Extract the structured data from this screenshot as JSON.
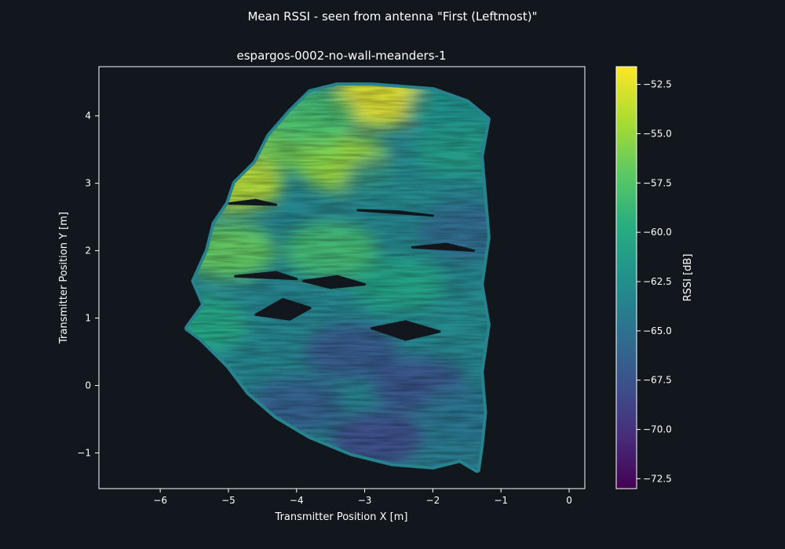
{
  "chart_data": {
    "type": "scatter",
    "suptitle": "Mean RSSI - seen from antenna \"First (Leftmost)\"",
    "title": "espargos-0002-no-wall-meanders-1",
    "xlabel": "Transmitter Position X [m]",
    "ylabel": "Transmitter Position Y [m]",
    "xlim": [
      -6.9,
      0.23
    ],
    "ylim": [
      -1.53,
      4.73
    ],
    "xticks": [
      -6,
      -5,
      -4,
      -3,
      -2,
      -1,
      0
    ],
    "yticks": [
      -1,
      0,
      1,
      2,
      3,
      4
    ],
    "grid": false,
    "colorbar": {
      "label": "RSSI [dB]",
      "range": [
        -73.0,
        -51.6
      ],
      "ticks": [
        -52.5,
        -55.0,
        -57.5,
        -60.0,
        -62.5,
        -65.0,
        -67.5,
        -70.0,
        -72.5
      ],
      "colormap": "viridis"
    },
    "region_outline": [
      [
        -2.9,
        4.45
      ],
      [
        -2.0,
        4.38
      ],
      [
        -1.5,
        4.2
      ],
      [
        -1.2,
        3.95
      ],
      [
        -1.3,
        3.4
      ],
      [
        -1.25,
        2.8
      ],
      [
        -1.2,
        2.2
      ],
      [
        -1.3,
        1.5
      ],
      [
        -1.2,
        0.9
      ],
      [
        -1.3,
        0.2
      ],
      [
        -1.25,
        -0.4
      ],
      [
        -1.3,
        -0.9
      ],
      [
        -1.35,
        -1.25
      ],
      [
        -1.6,
        -1.1
      ],
      [
        -2.0,
        -1.2
      ],
      [
        -2.6,
        -1.15
      ],
      [
        -3.2,
        -1.0
      ],
      [
        -3.8,
        -0.75
      ],
      [
        -4.3,
        -0.45
      ],
      [
        -4.7,
        -0.1
      ],
      [
        -5.0,
        0.3
      ],
      [
        -5.4,
        0.7
      ],
      [
        -5.6,
        0.85
      ],
      [
        -5.35,
        1.2
      ],
      [
        -5.5,
        1.55
      ],
      [
        -5.3,
        2.0
      ],
      [
        -5.2,
        2.4
      ],
      [
        -5.0,
        2.7
      ],
      [
        -4.9,
        3.0
      ],
      [
        -4.6,
        3.3
      ],
      [
        -4.4,
        3.7
      ],
      [
        -4.1,
        4.05
      ],
      [
        -3.8,
        4.35
      ],
      [
        -3.4,
        4.45
      ]
    ],
    "rssi_samples": [
      {
        "x": -2.8,
        "y": 4.25,
        "rssi": -52.0
      },
      {
        "x": -3.3,
        "y": 3.3,
        "rssi": -54.5
      },
      {
        "x": -4.0,
        "y": 3.6,
        "rssi": -56.0
      },
      {
        "x": -4.9,
        "y": 3.0,
        "rssi": -53.5
      },
      {
        "x": -5.0,
        "y": 2.0,
        "rssi": -56.5
      },
      {
        "x": -3.5,
        "y": 2.0,
        "rssi": -58.0
      },
      {
        "x": -2.6,
        "y": 3.0,
        "rssi": -63.0
      },
      {
        "x": -1.6,
        "y": 3.5,
        "rssi": -61.0
      },
      {
        "x": -1.5,
        "y": 2.3,
        "rssi": -66.0
      },
      {
        "x": -2.5,
        "y": 1.5,
        "rssi": -60.5
      },
      {
        "x": -4.5,
        "y": 1.0,
        "rssi": -63.5
      },
      {
        "x": -5.4,
        "y": 0.9,
        "rssi": -60.0
      },
      {
        "x": -1.5,
        "y": 1.0,
        "rssi": -63.0
      },
      {
        "x": -3.2,
        "y": 0.5,
        "rssi": -67.5
      },
      {
        "x": -2.2,
        "y": 0.0,
        "rssi": -68.0
      },
      {
        "x": -4.0,
        "y": -0.3,
        "rssi": -67.0
      },
      {
        "x": -1.5,
        "y": -0.4,
        "rssi": -65.0
      },
      {
        "x": -2.8,
        "y": -0.8,
        "rssi": -68.5
      },
      {
        "x": -1.6,
        "y": -1.1,
        "rssi": -64.5
      },
      {
        "x": -3.8,
        "y": 4.0,
        "rssi": -58.0
      },
      {
        "x": -1.7,
        "y": 4.1,
        "rssi": -62.0
      }
    ],
    "gaps": [
      {
        "points": [
          [
            -4.6,
            1.05
          ],
          [
            -4.2,
            1.28
          ],
          [
            -3.8,
            1.15
          ],
          [
            -4.1,
            0.98
          ]
        ]
      },
      {
        "points": [
          [
            -3.9,
            1.55
          ],
          [
            -3.4,
            1.62
          ],
          [
            -3.0,
            1.5
          ],
          [
            -3.5,
            1.45
          ]
        ]
      },
      {
        "points": [
          [
            -2.9,
            0.85
          ],
          [
            -2.4,
            0.95
          ],
          [
            -1.9,
            0.8
          ],
          [
            -2.4,
            0.68
          ]
        ]
      },
      {
        "points": [
          [
            -4.9,
            1.62
          ],
          [
            -4.3,
            1.68
          ],
          [
            -4.0,
            1.58
          ]
        ]
      },
      {
        "points": [
          [
            -3.1,
            2.6
          ],
          [
            -2.5,
            2.58
          ],
          [
            -2.0,
            2.52
          ]
        ]
      },
      {
        "points": [
          [
            -5.0,
            2.7
          ],
          [
            -4.6,
            2.75
          ],
          [
            -4.3,
            2.68
          ]
        ]
      },
      {
        "points": [
          [
            -2.3,
            2.05
          ],
          [
            -1.8,
            2.1
          ],
          [
            -1.4,
            2.0
          ]
        ]
      }
    ]
  }
}
